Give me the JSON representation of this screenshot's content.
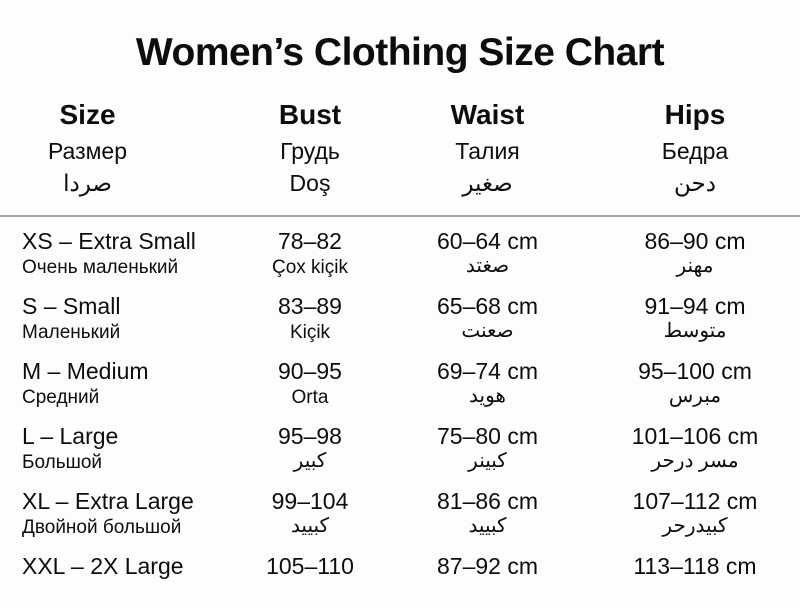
{
  "title": "Women’s Clothing Size Chart",
  "table": {
    "columns": [
      {
        "lines": [
          "Size",
          "Размер",
          "صردا"
        ]
      },
      {
        "lines": [
          "Bust",
          "Грудь",
          "Doş"
        ]
      },
      {
        "lines": [
          "Waist",
          "Талия",
          "صغير"
        ]
      },
      {
        "lines": [
          "Hips",
          "Бедра",
          "دحن"
        ]
      }
    ],
    "rows": [
      {
        "cells": [
          {
            "main": "XS – Extra Small",
            "sub": "Очень маленький"
          },
          {
            "main": "78–82",
            "sub": "Çox kiçik"
          },
          {
            "main": "60–64 cm",
            "sub": "صغتد"
          },
          {
            "main": "86–90 cm",
            "sub": "مهنر"
          }
        ]
      },
      {
        "cells": [
          {
            "main": "S – Small",
            "sub": "Маленький"
          },
          {
            "main": "83–89",
            "sub": "Kiçik"
          },
          {
            "main": "65–68 cm",
            "sub": "صعنت"
          },
          {
            "main": "91–94 cm",
            "sub": "متوسط"
          }
        ]
      },
      {
        "cells": [
          {
            "main": "M – Medium",
            "sub": "Средний"
          },
          {
            "main": "90–95",
            "sub": "Orta"
          },
          {
            "main": "69–74 cm",
            "sub": "هويد"
          },
          {
            "main": "95–100 cm",
            "sub": "مبرس"
          }
        ]
      },
      {
        "cells": [
          {
            "main": "L – Large",
            "sub": "Большой"
          },
          {
            "main": "95–98",
            "sub": "كبير"
          },
          {
            "main": "75–80 cm",
            "sub": "كبينر"
          },
          {
            "main": "101–106 cm",
            "sub": "مسر درحر"
          }
        ]
      },
      {
        "cells": [
          {
            "main": "XL – Extra Large",
            "sub": "Двойной большой"
          },
          {
            "main": "99–104",
            "sub": "كبييد"
          },
          {
            "main": "81–86 cm",
            "sub": "كبييد"
          },
          {
            "main": "107–112 cm",
            "sub": "كبيدرحر"
          }
        ]
      },
      {
        "cells": [
          {
            "main": "XXL – 2X Large",
            "sub": ""
          },
          {
            "main": "105–110",
            "sub": ""
          },
          {
            "main": "87–92 cm",
            "sub": ""
          },
          {
            "main": "113–118 cm",
            "sub": ""
          }
        ]
      }
    ]
  }
}
